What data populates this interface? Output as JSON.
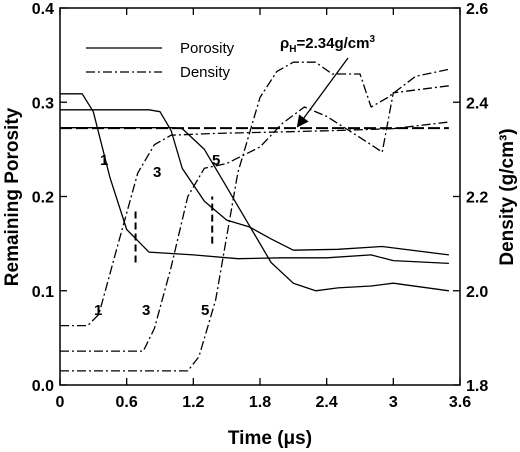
{
  "chart_data": {
    "type": "line",
    "title": "",
    "xlabel": "Time (μs)",
    "ylabel": "Remaining Porosity",
    "y2label": "Density (g/cm³)",
    "xlim": [
      0,
      3.6
    ],
    "ylim": [
      0,
      0.4
    ],
    "y2lim": [
      1.8,
      2.6
    ],
    "xticks": [
      "0",
      "0.6",
      "1.2",
      "1.8",
      "2.4",
      "3",
      "3.6"
    ],
    "yticks": [
      "0.0",
      "0.1",
      "0.2",
      "0.3",
      "0.4"
    ],
    "y2ticks": [
      "1.8",
      "2.0",
      "2.2",
      "2.4",
      "2.6"
    ],
    "legend": {
      "position": "top-left",
      "entries": [
        "Porosity",
        "Density"
      ]
    },
    "reference_label": "ρH=2.34g/cm3",
    "reference_density": 2.34,
    "series": [
      {
        "name": "Porosity",
        "curve": "1",
        "axis": "left",
        "x": [
          -0.1,
          0.2,
          0.3,
          0.45,
          0.6,
          0.8,
          1.2,
          1.6,
          2.0,
          2.4,
          2.8,
          2.9,
          3.0,
          3.5
        ],
        "y": [
          0.309,
          0.309,
          0.29,
          0.22,
          0.165,
          0.141,
          0.138,
          0.134,
          0.135,
          0.135,
          0.138,
          0.135,
          0.132,
          0.129
        ]
      },
      {
        "name": "Porosity",
        "curve": "3",
        "axis": "left",
        "x": [
          -0.1,
          0.8,
          0.9,
          1.0,
          1.1,
          1.3,
          1.5,
          1.7,
          1.9,
          2.1,
          2.5,
          2.9,
          3.5
        ],
        "y": [
          0.292,
          0.292,
          0.29,
          0.27,
          0.23,
          0.195,
          0.175,
          0.168,
          0.155,
          0.143,
          0.144,
          0.147,
          0.138
        ]
      },
      {
        "name": "Porosity",
        "curve": "5",
        "axis": "left",
        "x": [
          -0.1,
          1.0,
          1.1,
          1.3,
          1.5,
          1.7,
          1.9,
          2.1,
          2.3,
          2.5,
          2.8,
          3.0,
          3.5
        ],
        "y": [
          0.273,
          0.273,
          0.272,
          0.25,
          0.21,
          0.17,
          0.13,
          0.108,
          0.1,
          0.103,
          0.105,
          0.108,
          0.1
        ]
      },
      {
        "name": "Density",
        "curve": "1",
        "axis": "right",
        "x": [
          -0.05,
          0.25,
          0.35,
          0.5,
          0.7,
          0.85,
          1.0,
          1.4,
          2.0,
          2.5,
          3.0,
          3.5
        ],
        "y": [
          1.926,
          1.926,
          1.95,
          2.08,
          2.25,
          2.31,
          2.33,
          2.334,
          2.337,
          2.34,
          2.344,
          2.358
        ]
      },
      {
        "name": "Density",
        "curve": "3",
        "axis": "right",
        "x": [
          -0.05,
          0.75,
          0.85,
          1.0,
          1.15,
          1.3,
          1.5,
          1.8,
          2.0,
          2.2,
          2.4,
          2.6,
          2.8,
          2.9,
          3.0,
          3.5
        ],
        "y": [
          1.872,
          1.872,
          1.92,
          2.05,
          2.2,
          2.26,
          2.27,
          2.305,
          2.355,
          2.39,
          2.37,
          2.34,
          2.31,
          2.294,
          2.42,
          2.435
        ]
      },
      {
        "name": "Density",
        "curve": "5",
        "axis": "right",
        "x": [
          -0.05,
          1.15,
          1.25,
          1.4,
          1.6,
          1.8,
          1.95,
          2.1,
          2.3,
          2.45,
          2.7,
          2.8,
          2.95,
          3.2,
          3.5
        ],
        "y": [
          1.83,
          1.83,
          1.86,
          1.98,
          2.25,
          2.41,
          2.465,
          2.485,
          2.485,
          2.46,
          2.46,
          2.39,
          2.41,
          2.455,
          2.47
        ]
      }
    ],
    "curve_labels": [
      "1",
      "3",
      "5",
      "1",
      "3",
      "5"
    ],
    "annotations": [
      {
        "type": "reference_line",
        "axis": "right",
        "y": 2.345,
        "x": [
          0.0,
          3.5
        ]
      },
      {
        "type": "vertical_segment",
        "x": 0.68,
        "y": [
          0.13,
          0.185
        ]
      },
      {
        "type": "vertical_segment",
        "x": 1.37,
        "y": [
          0.15,
          0.2
        ]
      }
    ]
  }
}
